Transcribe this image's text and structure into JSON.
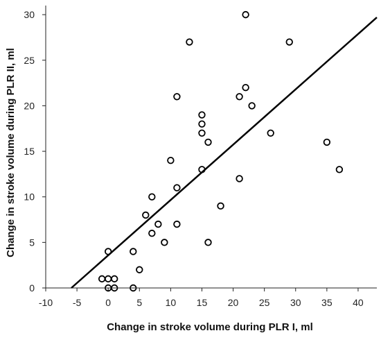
{
  "chart_data": {
    "type": "scatter",
    "title": "",
    "xlabel": "Change in stroke volume during PLR I, ml",
    "ylabel": "Change in stroke volume during PLR II, ml",
    "xlim": [
      -10,
      43
    ],
    "ylim": [
      0,
      31
    ],
    "x_ticks": [
      -10,
      -5,
      0,
      5,
      10,
      15,
      20,
      25,
      30,
      35,
      40
    ],
    "y_ticks": [
      0,
      5,
      10,
      15,
      20,
      25,
      30
    ],
    "grid": false,
    "legend": "none",
    "marker": "open-circle",
    "marker_color": "#000000",
    "points": [
      {
        "x": -1,
        "y": 1
      },
      {
        "x": 0,
        "y": 1
      },
      {
        "x": 1,
        "y": 1
      },
      {
        "x": 0,
        "y": 0
      },
      {
        "x": 1,
        "y": 0
      },
      {
        "x": 4,
        "y": 0
      },
      {
        "x": 0,
        "y": 4
      },
      {
        "x": 4,
        "y": 4
      },
      {
        "x": 5,
        "y": 2
      },
      {
        "x": 6,
        "y": 8
      },
      {
        "x": 7,
        "y": 6
      },
      {
        "x": 7,
        "y": 10
      },
      {
        "x": 8,
        "y": 7
      },
      {
        "x": 9,
        "y": 5
      },
      {
        "x": 10,
        "y": 14
      },
      {
        "x": 11,
        "y": 21
      },
      {
        "x": 11,
        "y": 11
      },
      {
        "x": 11,
        "y": 7
      },
      {
        "x": 13,
        "y": 27
      },
      {
        "x": 15,
        "y": 19
      },
      {
        "x": 15,
        "y": 18
      },
      {
        "x": 15,
        "y": 17
      },
      {
        "x": 15,
        "y": 13
      },
      {
        "x": 16,
        "y": 16
      },
      {
        "x": 16,
        "y": 5
      },
      {
        "x": 18,
        "y": 9
      },
      {
        "x": 21,
        "y": 21
      },
      {
        "x": 21,
        "y": 12
      },
      {
        "x": 22,
        "y": 30
      },
      {
        "x": 22,
        "y": 22
      },
      {
        "x": 23,
        "y": 20
      },
      {
        "x": 26,
        "y": 17
      },
      {
        "x": 29,
        "y": 27
      },
      {
        "x": 35,
        "y": 16
      },
      {
        "x": 37,
        "y": 13
      }
    ],
    "fit_line": {
      "x1": -5.9,
      "y1": 0,
      "x2": 43,
      "y2": 29.7,
      "color": "#000000"
    }
  }
}
